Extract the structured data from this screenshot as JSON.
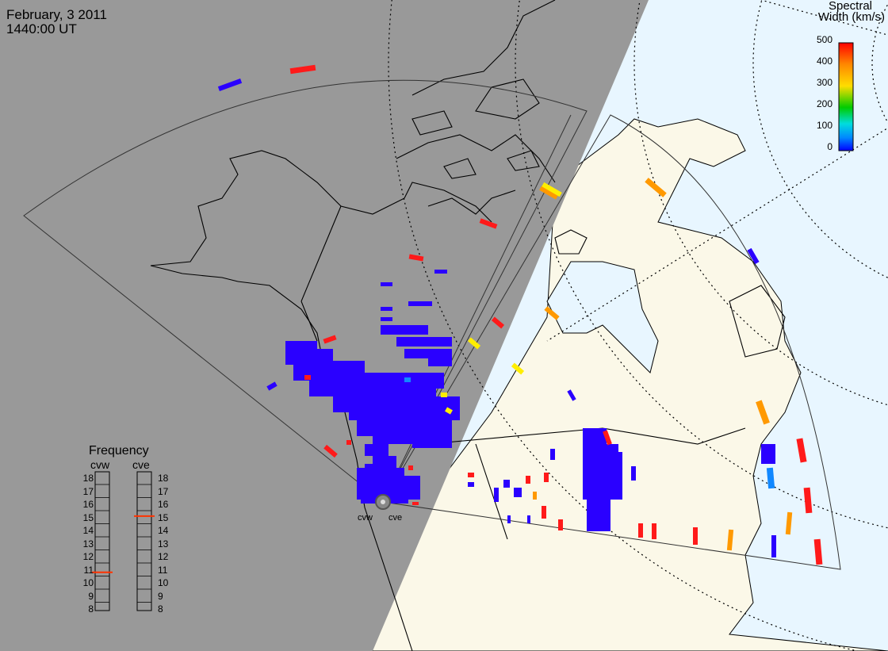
{
  "header": {
    "date": "February, 3 2011",
    "time": "1440:00 UT"
  },
  "colorbar": {
    "title_line1": "Spectral",
    "title_line2": "Width (km/s)",
    "ticks": [
      "500",
      "400",
      "300",
      "200",
      "100",
      "0"
    ],
    "stops": [
      "#ff0000",
      "#ff8800",
      "#ffdd00",
      "#00cc00",
      "#00dddd",
      "#0088ff",
      "#0000ff"
    ]
  },
  "frequency": {
    "title": "Frequency",
    "radar_left": "cvw",
    "radar_right": "cve",
    "scale": [
      "18",
      "17",
      "16",
      "15",
      "14",
      "13",
      "12",
      "11",
      "10",
      "9",
      "8"
    ],
    "cvw_mhz": 10.8,
    "cve_mhz": 15.1
  },
  "radars": {
    "west_label": "cvw",
    "east_label": "cve"
  },
  "colors": {
    "night": "#999999",
    "day_land": "#fbf8e8",
    "ocean": "#e8f6ff",
    "low": "#2a00ff",
    "high": "#ff1a1a",
    "orange": "#ff9900",
    "yellow": "#ffee00",
    "cyan_blue": "#1188ff"
  }
}
